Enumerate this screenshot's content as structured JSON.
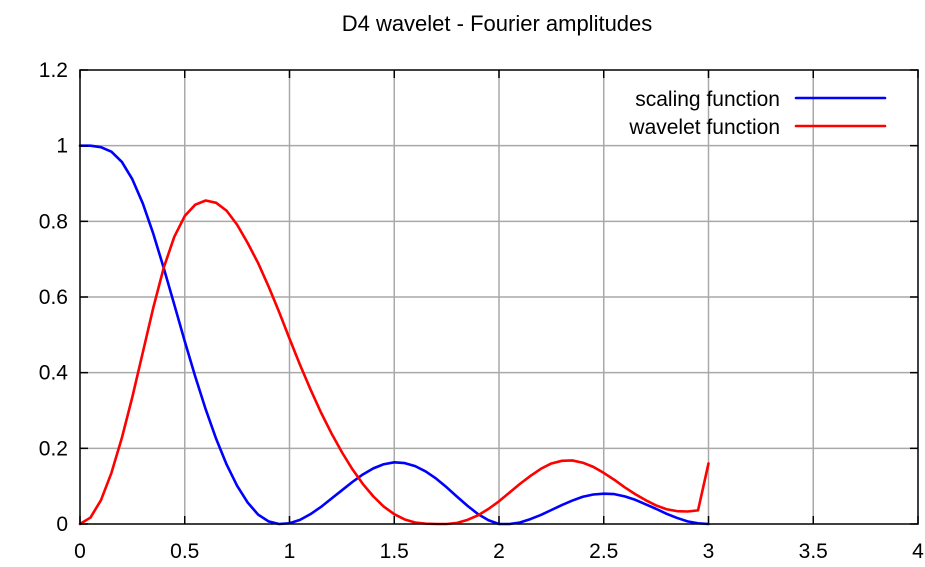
{
  "chart_data": {
    "type": "line",
    "title": "D4 wavelet - Fourier amplitudes",
    "xlabel": "",
    "ylabel": "",
    "xlim": [
      0,
      4
    ],
    "ylim": [
      0,
      1.2
    ],
    "grid": true,
    "legend_position": "top-right",
    "xticks": [
      0,
      0.5,
      1,
      1.5,
      2,
      2.5,
      3,
      3.5,
      4
    ],
    "xtick_labels": [
      "0",
      "0.5",
      "1",
      "1.5",
      "2",
      "2.5",
      "3",
      "3.5",
      "4"
    ],
    "yticks": [
      0,
      0.2,
      0.4,
      0.6,
      0.8,
      1,
      1.2
    ],
    "ytick_labels": [
      "0",
      "0.2",
      "0.4",
      "0.6",
      "0.8",
      "1",
      "1.2"
    ],
    "series": [
      {
        "name": "scaling function",
        "color": "#0000ff",
        "x": [
          0,
          0.05,
          0.1,
          0.15,
          0.2,
          0.25,
          0.3,
          0.35,
          0.4,
          0.45,
          0.5,
          0.55,
          0.6,
          0.65,
          0.7,
          0.75,
          0.8,
          0.85,
          0.9,
          0.95,
          1,
          1.05,
          1.1,
          1.15,
          1.2,
          1.25,
          1.3,
          1.35,
          1.4,
          1.45,
          1.5,
          1.55,
          1.6,
          1.65,
          1.7,
          1.75,
          1.8,
          1.85,
          1.9,
          1.95,
          2,
          2.05,
          2.1,
          2.15,
          2.2,
          2.25,
          2.3,
          2.35,
          2.4,
          2.45,
          2.5,
          2.55,
          2.6,
          2.65,
          2.7,
          2.75,
          2.8,
          2.85,
          2.9,
          2.95,
          3
        ],
        "values": [
          1.0,
          1.0,
          0.996,
          0.984,
          0.957,
          0.911,
          0.847,
          0.767,
          0.676,
          0.58,
          0.483,
          0.39,
          0.303,
          0.225,
          0.157,
          0.101,
          0.057,
          0.025,
          0.007,
          0.0,
          0.002,
          0.011,
          0.026,
          0.045,
          0.067,
          0.089,
          0.111,
          0.131,
          0.147,
          0.158,
          0.163,
          0.161,
          0.153,
          0.139,
          0.12,
          0.097,
          0.072,
          0.048,
          0.026,
          0.01,
          0.0,
          0.0,
          0.004,
          0.013,
          0.024,
          0.037,
          0.05,
          0.062,
          0.072,
          0.078,
          0.08,
          0.079,
          0.073,
          0.064,
          0.052,
          0.04,
          0.027,
          0.016,
          0.007,
          0.002,
          0.0
        ]
      },
      {
        "name": "wavelet function",
        "color": "#ff0000",
        "x": [
          0,
          0.05,
          0.1,
          0.15,
          0.2,
          0.25,
          0.3,
          0.35,
          0.4,
          0.45,
          0.5,
          0.55,
          0.6,
          0.65,
          0.7,
          0.75,
          0.8,
          0.85,
          0.9,
          0.95,
          1,
          1.05,
          1.1,
          1.15,
          1.2,
          1.25,
          1.3,
          1.35,
          1.4,
          1.45,
          1.5,
          1.55,
          1.6,
          1.65,
          1.7,
          1.75,
          1.8,
          1.85,
          1.9,
          1.95,
          2,
          2.05,
          2.1,
          2.15,
          2.2,
          2.25,
          2.3,
          2.35,
          2.4,
          2.45,
          2.5,
          2.55,
          2.6,
          2.65,
          2.7,
          2.75,
          2.8,
          2.85,
          2.9,
          2.95,
          3
        ],
        "values": [
          0.0,
          0.017,
          0.063,
          0.135,
          0.228,
          0.336,
          0.454,
          0.572,
          0.678,
          0.759,
          0.814,
          0.844,
          0.855,
          0.849,
          0.828,
          0.791,
          0.743,
          0.69,
          0.628,
          0.561,
          0.49,
          0.421,
          0.356,
          0.295,
          0.24,
          0.19,
          0.145,
          0.106,
          0.073,
          0.046,
          0.026,
          0.012,
          0.004,
          0.001,
          0.0,
          0.0,
          0.003,
          0.011,
          0.023,
          0.04,
          0.06,
          0.083,
          0.106,
          0.127,
          0.146,
          0.16,
          0.167,
          0.168,
          0.162,
          0.151,
          0.135,
          0.117,
          0.097,
          0.079,
          0.063,
          0.049,
          0.039,
          0.034,
          0.033,
          0.036,
          0.16
        ]
      }
    ]
  }
}
